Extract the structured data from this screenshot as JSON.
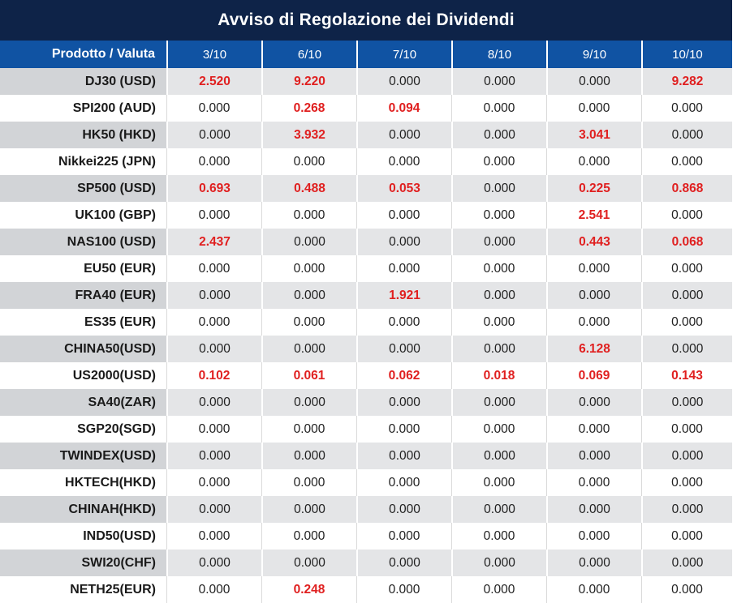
{
  "title": "Avviso di Regolazione dei Dividendi",
  "header": {
    "product_label": "Prodotto / Valuta",
    "dates": [
      "3/10",
      "6/10",
      "7/10",
      "8/10",
      "9/10",
      "10/10"
    ]
  },
  "colors": {
    "title_bg": "#0e2348",
    "header_bg": "#1053a3",
    "alt_label_bg": "#d2d4d7",
    "alt_cell_bg": "#e4e5e7",
    "highlight_red": "#e02020",
    "text_dark": "#212121"
  },
  "rows": [
    {
      "label": "DJ30 (USD)",
      "values": [
        "2.520",
        "9.220",
        "0.000",
        "0.000",
        "0.000",
        "9.282"
      ],
      "red": [
        true,
        true,
        false,
        false,
        false,
        true
      ]
    },
    {
      "label": "SPI200 (AUD)",
      "values": [
        "0.000",
        "0.268",
        "0.094",
        "0.000",
        "0.000",
        "0.000"
      ],
      "red": [
        false,
        true,
        true,
        false,
        false,
        false
      ]
    },
    {
      "label": "HK50 (HKD)",
      "values": [
        "0.000",
        "3.932",
        "0.000",
        "0.000",
        "3.041",
        "0.000"
      ],
      "red": [
        false,
        true,
        false,
        false,
        true,
        false
      ]
    },
    {
      "label": "Nikkei225 (JPN)",
      "values": [
        "0.000",
        "0.000",
        "0.000",
        "0.000",
        "0.000",
        "0.000"
      ],
      "red": [
        false,
        false,
        false,
        false,
        false,
        false
      ]
    },
    {
      "label": "SP500 (USD)",
      "values": [
        "0.693",
        "0.488",
        "0.053",
        "0.000",
        "0.225",
        "0.868"
      ],
      "red": [
        true,
        true,
        true,
        false,
        true,
        true
      ]
    },
    {
      "label": "UK100 (GBP)",
      "values": [
        "0.000",
        "0.000",
        "0.000",
        "0.000",
        "2.541",
        "0.000"
      ],
      "red": [
        false,
        false,
        false,
        false,
        true,
        false
      ]
    },
    {
      "label": "NAS100 (USD)",
      "values": [
        "2.437",
        "0.000",
        "0.000",
        "0.000",
        "0.443",
        "0.068"
      ],
      "red": [
        true,
        false,
        false,
        false,
        true,
        true
      ]
    },
    {
      "label": "EU50 (EUR)",
      "values": [
        "0.000",
        "0.000",
        "0.000",
        "0.000",
        "0.000",
        "0.000"
      ],
      "red": [
        false,
        false,
        false,
        false,
        false,
        false
      ]
    },
    {
      "label": "FRA40 (EUR)",
      "values": [
        "0.000",
        "0.000",
        "1.921",
        "0.000",
        "0.000",
        "0.000"
      ],
      "red": [
        false,
        false,
        true,
        false,
        false,
        false
      ]
    },
    {
      "label": "ES35 (EUR)",
      "values": [
        "0.000",
        "0.000",
        "0.000",
        "0.000",
        "0.000",
        "0.000"
      ],
      "red": [
        false,
        false,
        false,
        false,
        false,
        false
      ]
    },
    {
      "label": "CHINA50(USD)",
      "values": [
        "0.000",
        "0.000",
        "0.000",
        "0.000",
        "6.128",
        "0.000"
      ],
      "red": [
        false,
        false,
        false,
        false,
        true,
        false
      ]
    },
    {
      "label": "US2000(USD)",
      "values": [
        "0.102",
        "0.061",
        "0.062",
        "0.018",
        "0.069",
        "0.143"
      ],
      "red": [
        true,
        true,
        true,
        true,
        true,
        true
      ]
    },
    {
      "label": "SA40(ZAR)",
      "values": [
        "0.000",
        "0.000",
        "0.000",
        "0.000",
        "0.000",
        "0.000"
      ],
      "red": [
        false,
        false,
        false,
        false,
        false,
        false
      ]
    },
    {
      "label": "SGP20(SGD)",
      "values": [
        "0.000",
        "0.000",
        "0.000",
        "0.000",
        "0.000",
        "0.000"
      ],
      "red": [
        false,
        false,
        false,
        false,
        false,
        false
      ]
    },
    {
      "label": "TWINDEX(USD)",
      "values": [
        "0.000",
        "0.000",
        "0.000",
        "0.000",
        "0.000",
        "0.000"
      ],
      "red": [
        false,
        false,
        false,
        false,
        false,
        false
      ]
    },
    {
      "label": "HKTECH(HKD)",
      "values": [
        "0.000",
        "0.000",
        "0.000",
        "0.000",
        "0.000",
        "0.000"
      ],
      "red": [
        false,
        false,
        false,
        false,
        false,
        false
      ]
    },
    {
      "label": "CHINAH(HKD)",
      "values": [
        "0.000",
        "0.000",
        "0.000",
        "0.000",
        "0.000",
        "0.000"
      ],
      "red": [
        false,
        false,
        false,
        false,
        false,
        false
      ]
    },
    {
      "label": "IND50(USD)",
      "values": [
        "0.000",
        "0.000",
        "0.000",
        "0.000",
        "0.000",
        "0.000"
      ],
      "red": [
        false,
        false,
        false,
        false,
        false,
        false
      ]
    },
    {
      "label": "SWI20(CHF)",
      "values": [
        "0.000",
        "0.000",
        "0.000",
        "0.000",
        "0.000",
        "0.000"
      ],
      "red": [
        false,
        false,
        false,
        false,
        false,
        false
      ]
    },
    {
      "label": "NETH25(EUR)",
      "values": [
        "0.000",
        "0.248",
        "0.000",
        "0.000",
        "0.000",
        "0.000"
      ],
      "red": [
        false,
        true,
        false,
        false,
        false,
        false
      ]
    }
  ]
}
